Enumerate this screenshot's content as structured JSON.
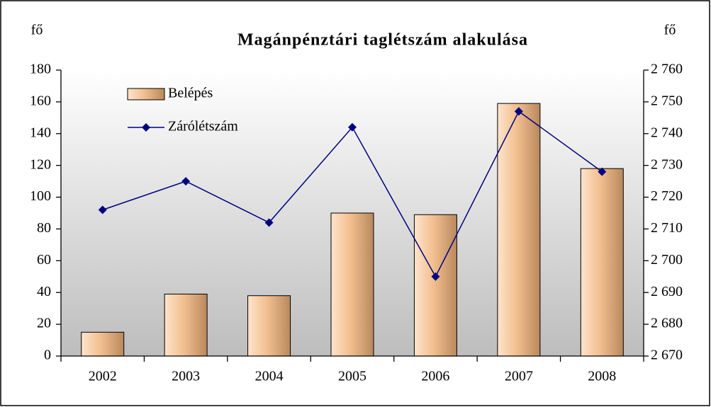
{
  "chart_data": {
    "type": "bar_line",
    "title": "Magánpénztári taglétszám alakulása",
    "ylabel": "fő",
    "y2label": "fő",
    "categories": [
      "2002",
      "2003",
      "2004",
      "2005",
      "2006",
      "2007",
      "2008"
    ],
    "series": [
      {
        "name": "Belépés",
        "type": "bar",
        "color": "#f2bf8f",
        "values": [
          15,
          39,
          38,
          90,
          89,
          159,
          118
        ]
      },
      {
        "name": "Zárólétszám",
        "type": "line",
        "axis": "y2",
        "color": "#000080",
        "values": [
          2716,
          2725,
          2712,
          2742,
          2695,
          2747,
          2728
        ]
      }
    ],
    "ylim": [
      0,
      180
    ],
    "yticks": [
      0,
      20,
      40,
      60,
      80,
      100,
      120,
      140,
      160,
      180
    ],
    "y2lim": [
      2670,
      2760
    ],
    "y2ticks": [
      {
        "value": 2670,
        "label": "2 670"
      },
      {
        "value": 2680,
        "label": "2 680"
      },
      {
        "value": 2690,
        "label": "2 690"
      },
      {
        "value": 2700,
        "label": "2 700"
      },
      {
        "value": 2710,
        "label": "2 710"
      },
      {
        "value": 2720,
        "label": "2 720"
      },
      {
        "value": 2730,
        "label": "2 730"
      },
      {
        "value": 2740,
        "label": "2 740"
      },
      {
        "value": 2750,
        "label": "2 750"
      },
      {
        "value": 2760,
        "label": "2 760"
      }
    ],
    "legend": "upper left"
  }
}
